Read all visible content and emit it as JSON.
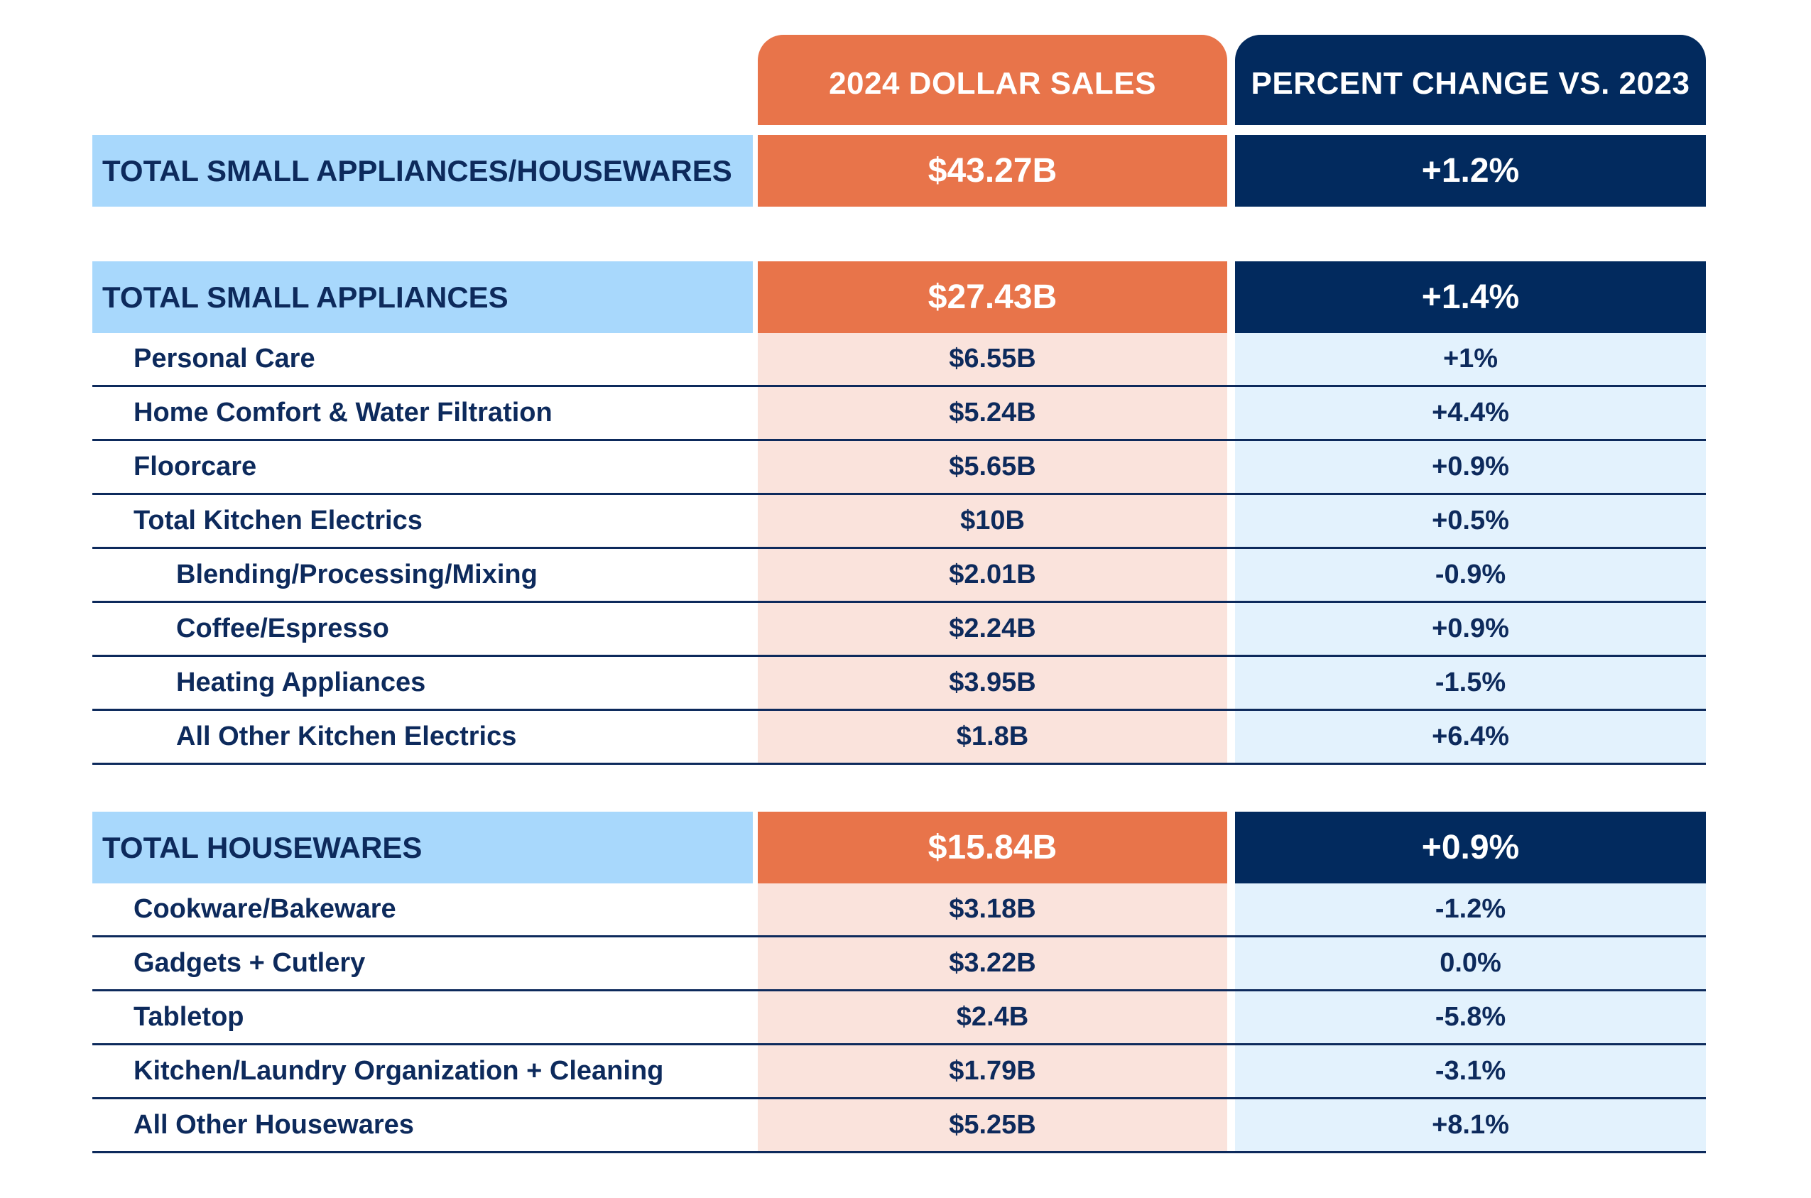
{
  "header": {
    "sales_label": "2024 DOLLAR SALES",
    "pct_label": "PERCENT CHANGE VS. 2023"
  },
  "grand_total": {
    "label": "TOTAL SMALL APPLIANCES/HOUSEWARES",
    "sales": "$43.27B",
    "change": "+1.2%"
  },
  "small_appliances": {
    "label": "TOTAL SMALL APPLIANCES",
    "sales": "$27.43B",
    "change": "+1.4%",
    "rows": [
      {
        "label": "Personal Care",
        "sales": "$6.55B",
        "change": "+1%"
      },
      {
        "label": "Home Comfort & Water Filtration",
        "sales": "$5.24B",
        "change": "+4.4%"
      },
      {
        "label": "Floorcare",
        "sales": "$5.65B",
        "change": "+0.9%"
      },
      {
        "label": "Total Kitchen Electrics",
        "sales": "$10B",
        "change": "+0.5%"
      },
      {
        "label": "Blending/Processing/Mixing",
        "sales": "$2.01B",
        "change": "-0.9%"
      },
      {
        "label": "Coffee/Espresso",
        "sales": "$2.24B",
        "change": "+0.9%"
      },
      {
        "label": "Heating Appliances",
        "sales": "$3.95B",
        "change": "-1.5%"
      },
      {
        "label": "All Other Kitchen Electrics",
        "sales": "$1.8B",
        "change": "+6.4%"
      }
    ]
  },
  "housewares": {
    "label": "TOTAL HOUSEWARES",
    "sales": "$15.84B",
    "change": "+0.9%",
    "rows": [
      {
        "label": "Cookware/Bakeware",
        "sales": "$3.18B",
        "change": "-1.2%"
      },
      {
        "label": "Gadgets + Cutlery",
        "sales": "$3.22B",
        "change": "0.0%"
      },
      {
        "label": "Tabletop",
        "sales": "$2.4B",
        "change": "-5.8%"
      },
      {
        "label": "Kitchen/Laundry Organization + Cleaning",
        "sales": "$1.79B",
        "change": "-3.1%"
      },
      {
        "label": "All Other Housewares",
        "sales": "$5.25B",
        "change": "+8.1%"
      }
    ]
  },
  "colors": {
    "orange": "#e8744a",
    "navy": "#022a5e",
    "light_blue": "#a8d8fc",
    "light_orange": "#fae3dc",
    "pale_blue": "#e3f2fd"
  }
}
